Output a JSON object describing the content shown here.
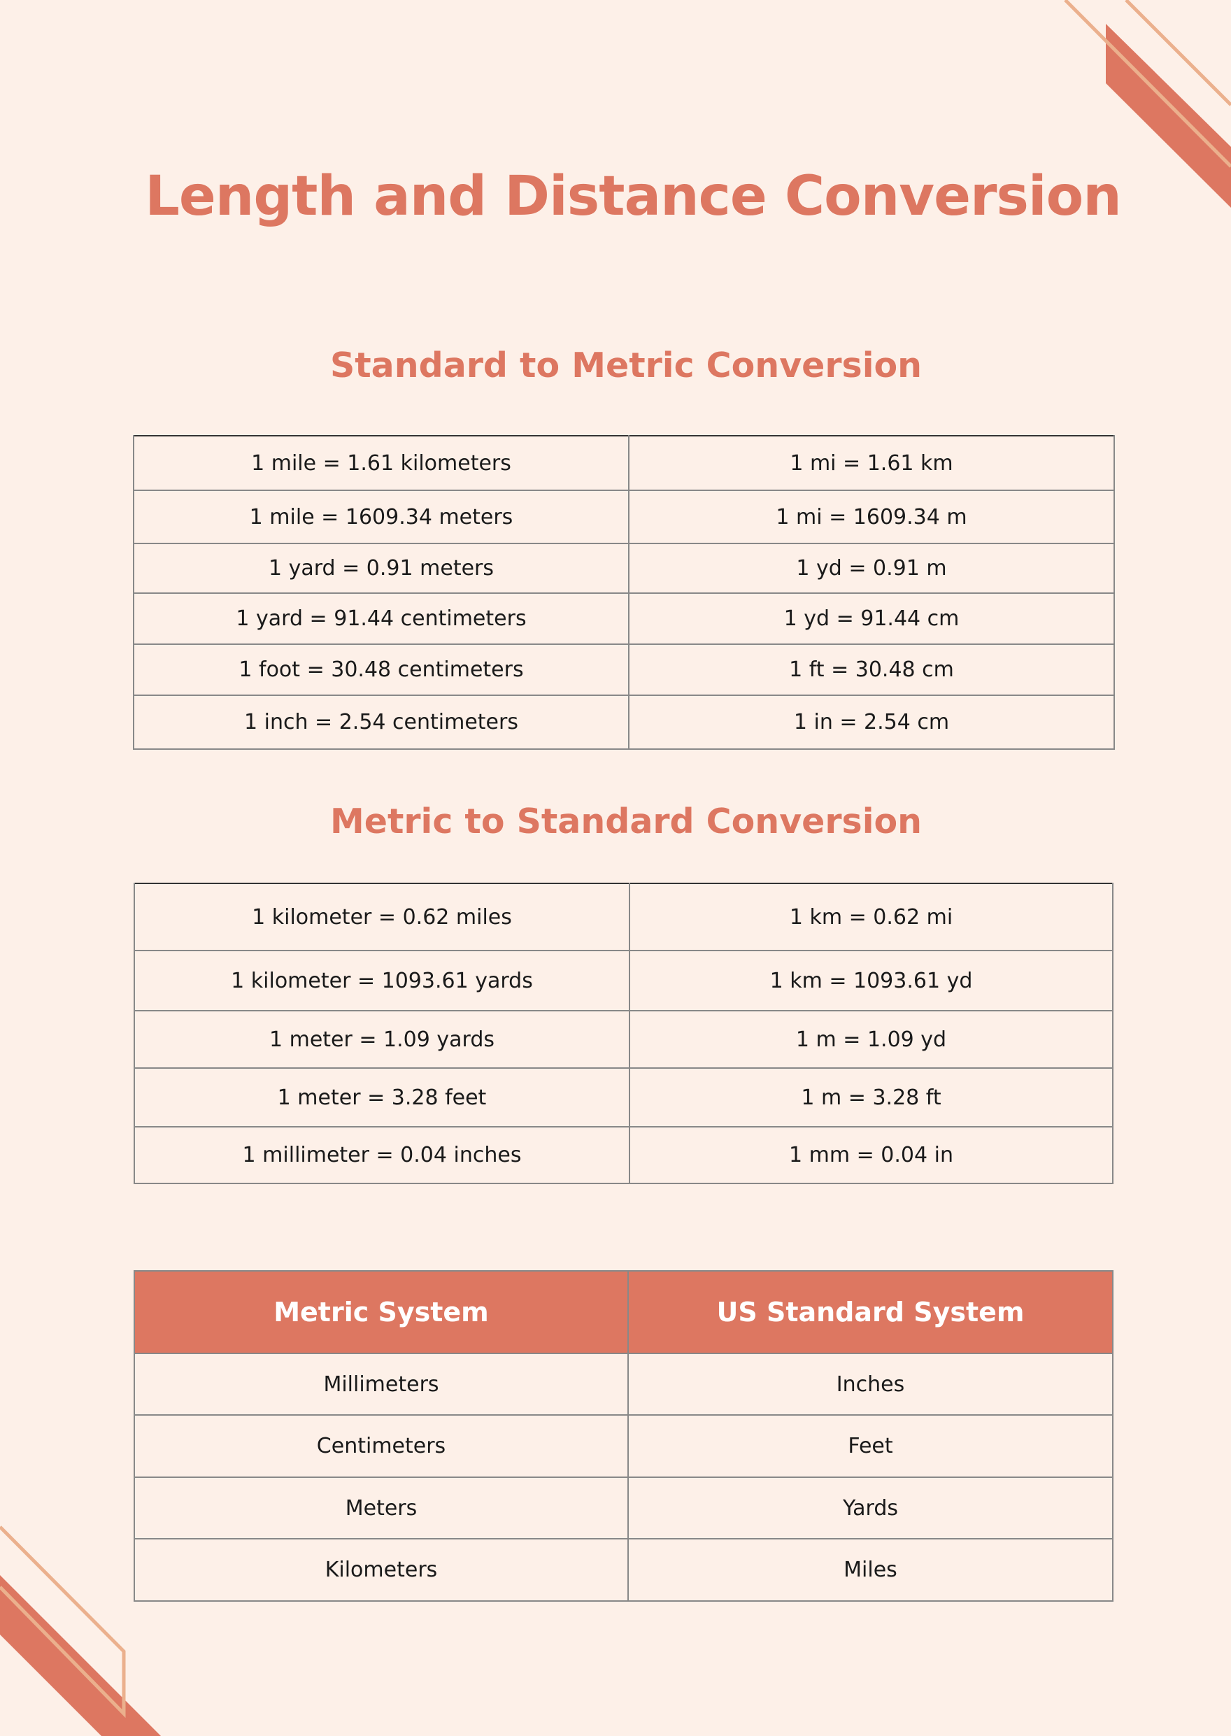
{
  "title": "Length and Distance Conversion",
  "colors": {
    "accent": "#DD7761",
    "accent_light": "#EBB08D",
    "background": "#FDF0E8"
  },
  "standard_to_metric": {
    "heading": "Standard to Metric Conversion",
    "rows": [
      [
        "1 mile = 1.61 kilometers",
        "1 mi = 1.61 km"
      ],
      [
        "1 mile = 1609.34 meters",
        "1 mi = 1609.34 m"
      ],
      [
        "1 yard = 0.91 meters",
        "1 yd = 0.91 m"
      ],
      [
        "1 yard = 91.44 centimeters",
        "1 yd = 91.44 cm"
      ],
      [
        "1 foot = 30.48 centimeters",
        "1 ft = 30.48 cm"
      ],
      [
        "1 inch = 2.54 centimeters",
        "1 in = 2.54 cm"
      ]
    ]
  },
  "metric_to_standard": {
    "heading": "Metric to Standard Conversion",
    "rows": [
      [
        "1 kilometer = 0.62 miles",
        "1 km = 0.62 mi"
      ],
      [
        "1 kilometer = 1093.61 yards",
        "1 km = 1093.61 yd"
      ],
      [
        "1 meter = 1.09 yards",
        "1 m = 1.09 yd"
      ],
      [
        "1 meter = 3.28 feet",
        "1 m = 3.28 ft"
      ],
      [
        "1 millimeter = 0.04 inches",
        "1 mm = 0.04 in"
      ]
    ]
  },
  "systems": {
    "headers": [
      "Metric System",
      "US Standard System"
    ],
    "rows": [
      [
        "Millimeters",
        "Inches"
      ],
      [
        "Centimeters",
        "Feet"
      ],
      [
        "Meters",
        "Yards"
      ],
      [
        "Kilometers",
        "Miles"
      ]
    ]
  }
}
